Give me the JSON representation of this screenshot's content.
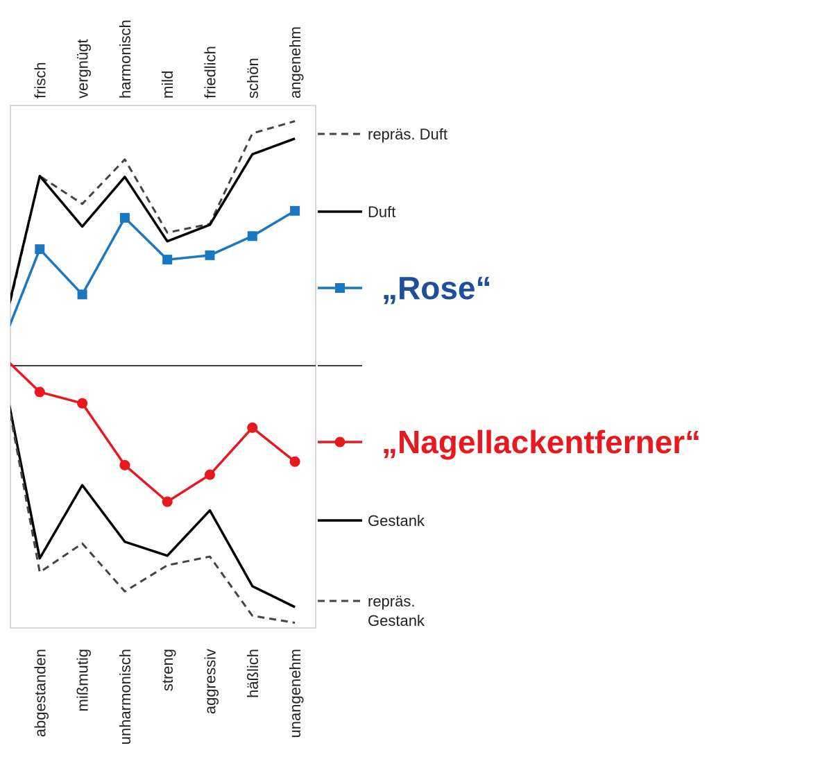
{
  "chart_data": {
    "type": "line",
    "categories": [
      null,
      "frisch",
      "vergnügt",
      "harmonisch",
      "mild",
      "friedlich",
      "schön",
      "angenehm"
    ],
    "opposite_categories": [
      null,
      "abgestanden",
      "mißmutig",
      "unharmonisch",
      "streng",
      "aggressiv",
      "häßlich",
      "unangenehm"
    ],
    "ylim": [
      -3,
      3
    ],
    "series": [
      {
        "name": "repräs. Duft",
        "color": "#444444",
        "dashed": true,
        "values": [
          0.1,
          2.19,
          1.87,
          2.38,
          1.54,
          1.64,
          2.68,
          2.82
        ]
      },
      {
        "name": "Duft",
        "color": "#000000",
        "values": [
          0.14,
          2.19,
          1.61,
          2.18,
          1.44,
          1.63,
          2.44,
          2.62
        ]
      },
      {
        "name": "„Rose“",
        "color": "#1a78c2",
        "label_color": "#1f4e9a",
        "marker": "square",
        "emphasis": true,
        "values": [
          0.11,
          1.35,
          0.83,
          1.71,
          1.23,
          1.28,
          1.5,
          1.79
        ]
      },
      {
        "name": "„Nagellackentferner“",
        "color": "#e8191e",
        "label_color": "#e8191e",
        "marker": "circle",
        "emphasis": true,
        "values": [
          0.18,
          -0.29,
          -0.42,
          -1.13,
          -1.55,
          -1.24,
          -0.7,
          -1.09
        ]
      },
      {
        "name": "Gestank",
        "color": "#000000",
        "values": [
          0.26,
          -2.2,
          -1.36,
          -2.01,
          -2.17,
          -1.65,
          -2.52,
          -2.76
        ]
      },
      {
        "name": "repräs. Gestank",
        "color": "#444444",
        "dashed": true,
        "values": [
          0.26,
          -2.36,
          -2.03,
          -2.58,
          -2.28,
          -2.18,
          -2.86,
          -2.94
        ]
      }
    ]
  }
}
